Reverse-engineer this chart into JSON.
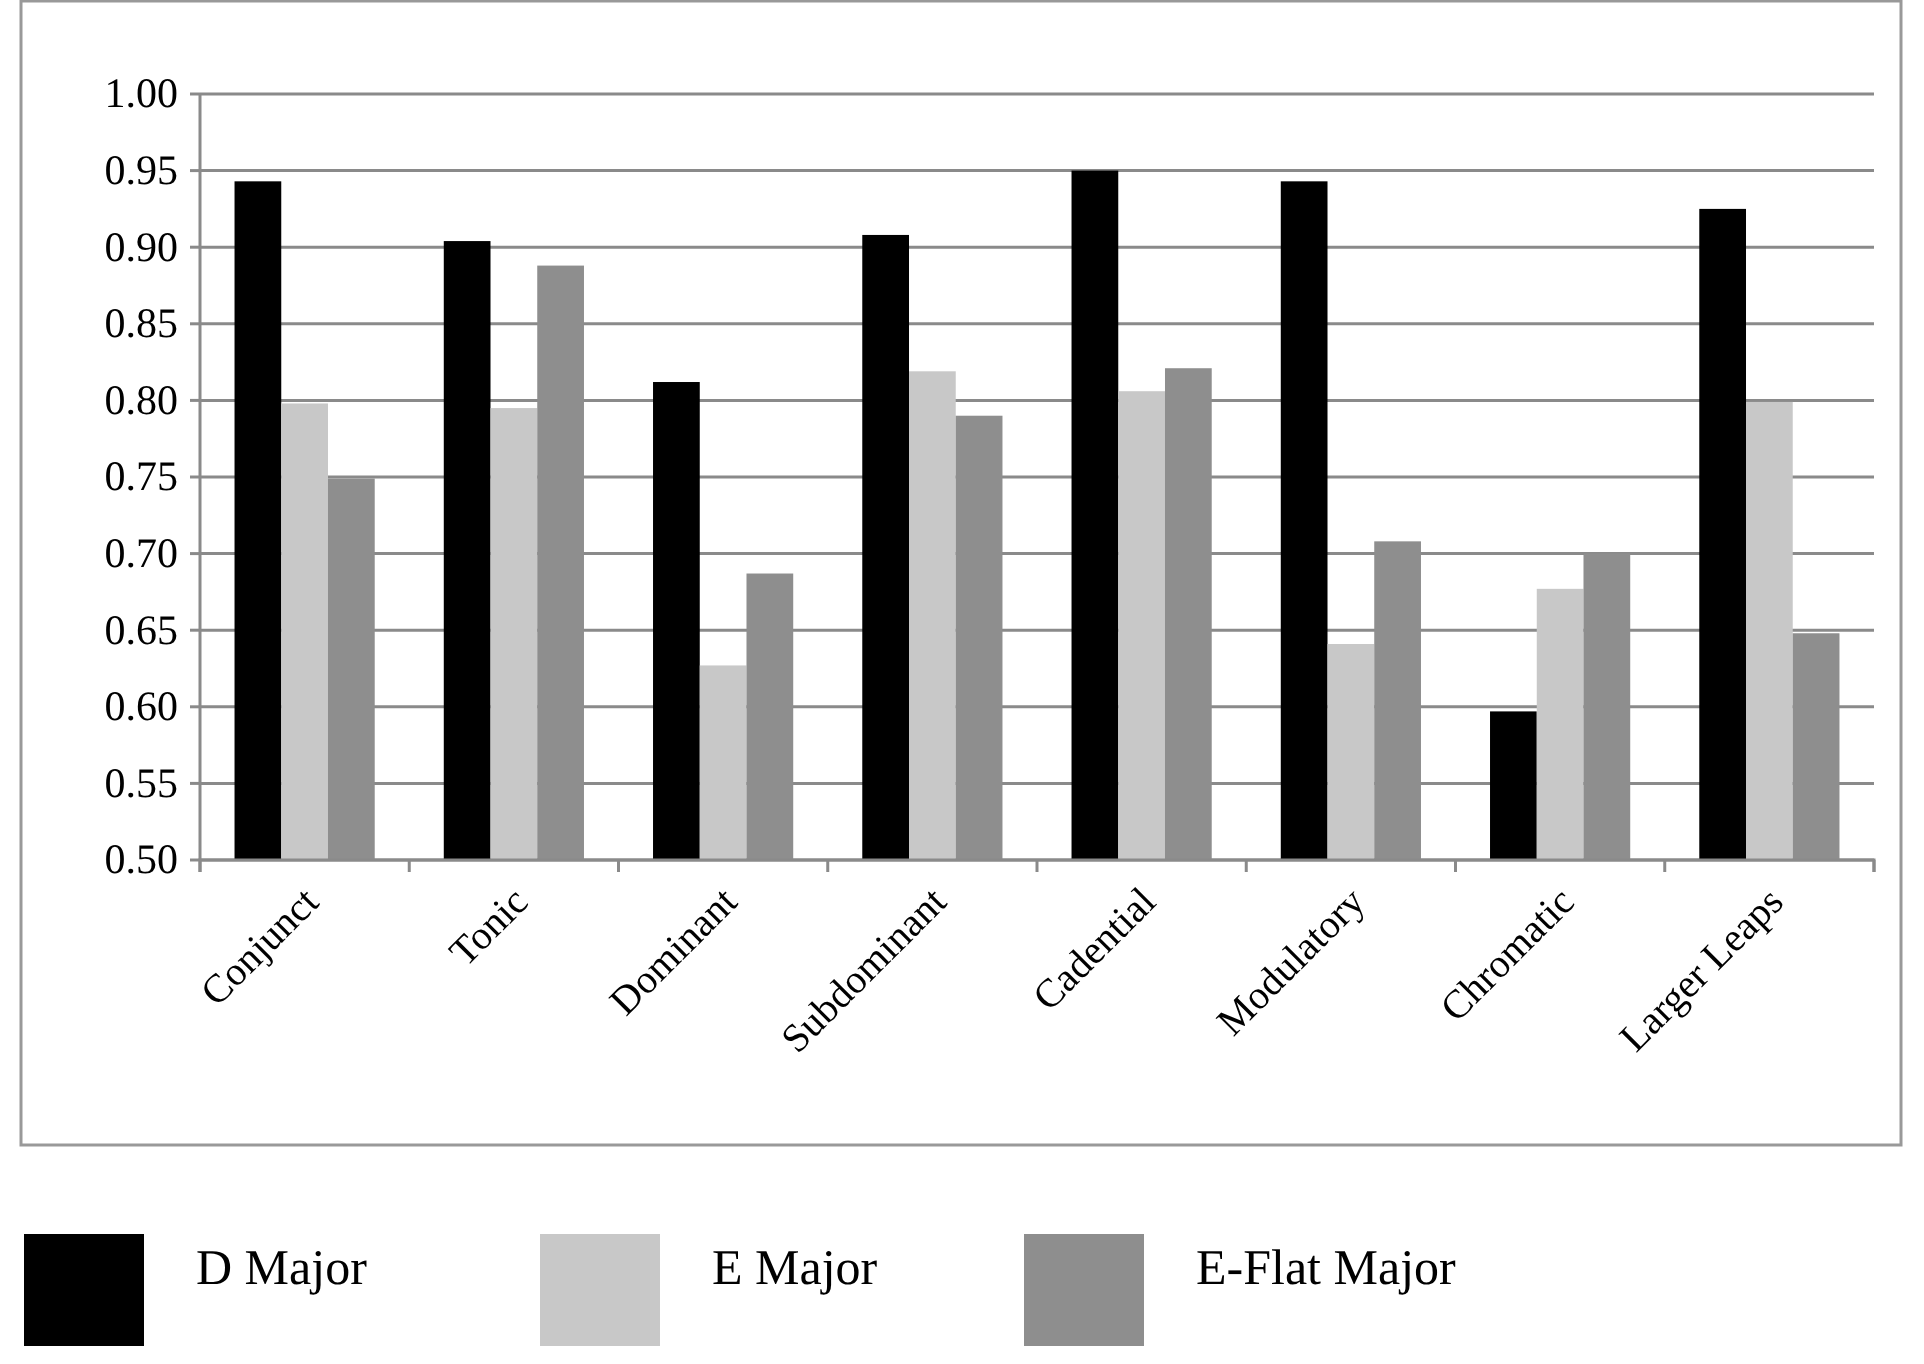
{
  "chart_data": {
    "type": "bar",
    "categories": [
      "Conjunct",
      "Tonic",
      "Dominant",
      "Subdominant",
      "Cadential",
      "Modulatory",
      "Chromatic",
      "Larger Leaps"
    ],
    "series": [
      {
        "name": "D Major",
        "color": "#000000",
        "values": [
          0.943,
          0.904,
          0.812,
          0.908,
          0.95,
          0.943,
          0.597,
          0.925
        ]
      },
      {
        "name": "E Major",
        "color": "#c8c8c8",
        "values": [
          0.798,
          0.795,
          0.627,
          0.819,
          0.806,
          0.641,
          0.677,
          0.799
        ]
      },
      {
        "name": "E-Flat Major",
        "color": "#8e8e8e",
        "values": [
          0.749,
          0.888,
          0.687,
          0.79,
          0.821,
          0.708,
          0.7,
          0.648
        ]
      }
    ],
    "ylim": [
      0.5,
      1.0
    ],
    "yticks": [
      {
        "value": 0.5,
        "label": "0.50"
      },
      {
        "value": 0.55,
        "label": "0.55"
      },
      {
        "value": 0.6,
        "label": "0.60"
      },
      {
        "value": 0.65,
        "label": "0.65"
      },
      {
        "value": 0.7,
        "label": "0.70"
      },
      {
        "value": 0.75,
        "label": "0.75"
      },
      {
        "value": 0.8,
        "label": "0.80"
      },
      {
        "value": 0.85,
        "label": "0.85"
      },
      {
        "value": 0.9,
        "label": "0.90"
      },
      {
        "value": 0.95,
        "label": "0.95"
      },
      {
        "value": 1.0,
        "label": "1.00"
      }
    ],
    "grid": "y",
    "legend": "bottom left"
  }
}
